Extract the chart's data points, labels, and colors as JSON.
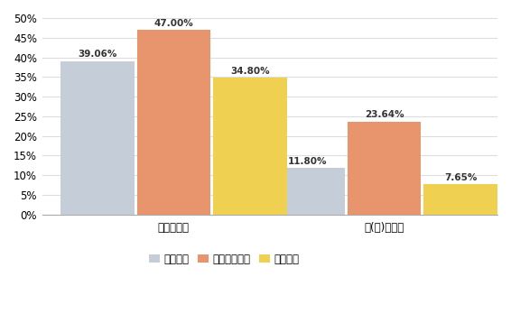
{
  "categories": [
    "国内升学率",
    "国(境)外升学"
  ],
  "series": [
    {
      "name": "四川大学",
      "color": "#c5cdd8",
      "values": [
        39.06,
        11.8
      ]
    },
    {
      "name": "电子科技大学",
      "color": "#e8956d",
      "values": [
        47.0,
        23.64
      ]
    },
    {
      "name": "重庆大学",
      "color": "#f0d050",
      "values": [
        34.8,
        7.65
      ]
    }
  ],
  "ylim": [
    0,
    50
  ],
  "yticks": [
    0,
    5,
    10,
    15,
    20,
    25,
    30,
    35,
    40,
    45,
    50
  ],
  "ytick_labels": [
    "0%",
    "5%",
    "10%",
    "15%",
    "20%",
    "25%",
    "30%",
    "35%",
    "40%",
    "45%",
    "50%"
  ],
  "bar_width": 0.28,
  "background_color": "#ffffff",
  "grid_color": "#dddddd",
  "tick_fontsize": 8.5,
  "legend_fontsize": 8.5,
  "value_fontsize": 7.5,
  "group_centers": [
    0.42,
    1.22
  ]
}
